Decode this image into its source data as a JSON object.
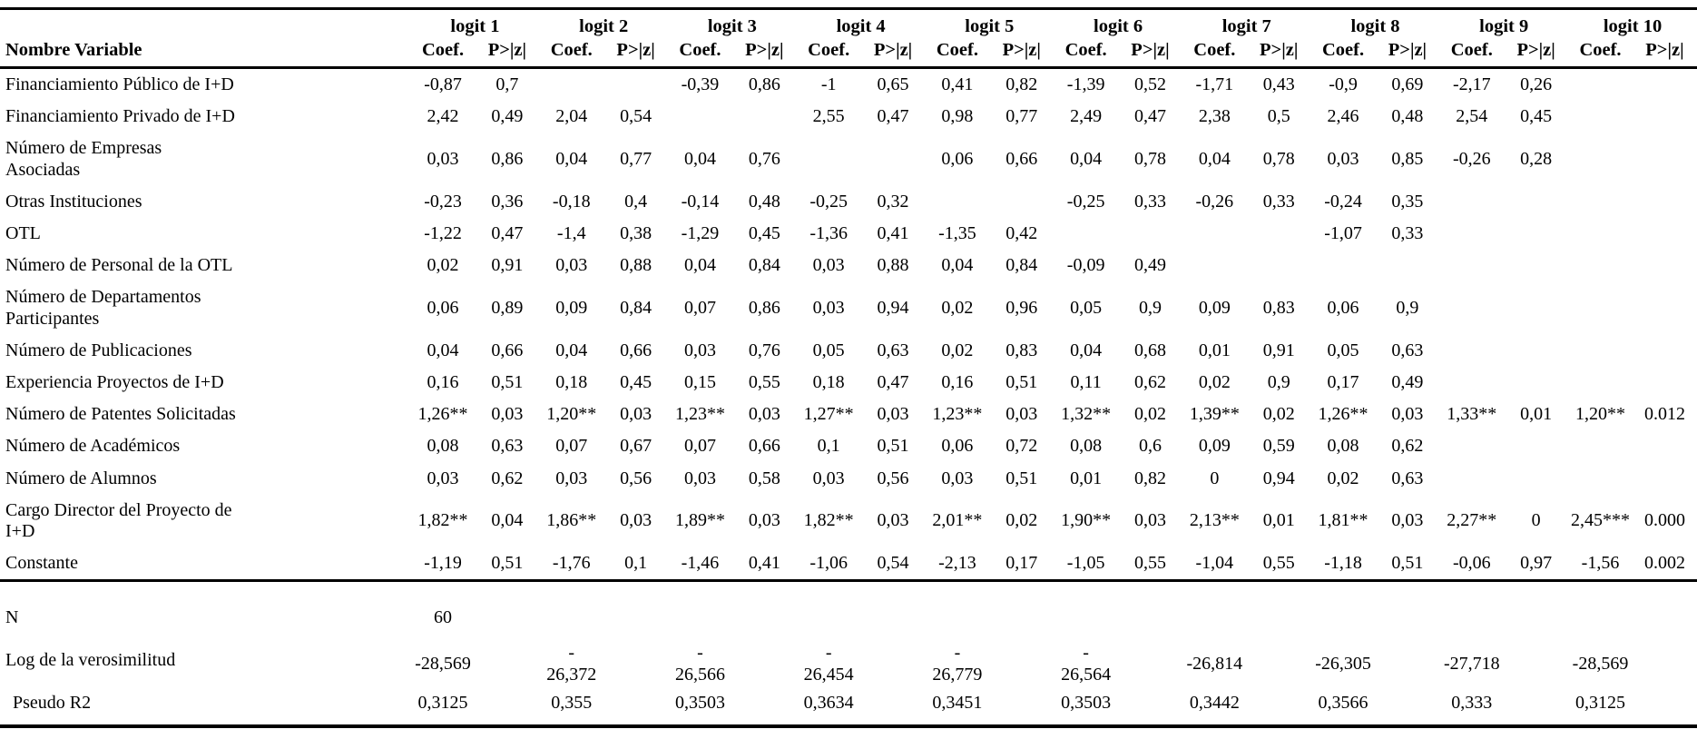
{
  "table": {
    "header": {
      "variable_col": "Nombre Variable",
      "coef_label": "Coef.",
      "p_label": "P>|z|"
    },
    "col_groups": [
      "logit 1",
      "logit 2",
      "logit 3",
      "logit 4",
      "logit 5",
      "logit 6",
      "logit 7",
      "logit 8",
      "logit 9",
      "logit 10"
    ],
    "rows": [
      {
        "label": "Financiamiento Público de I+D",
        "cells": [
          "-0,87",
          "0,7",
          "",
          "",
          "-0,39",
          "0,86",
          "-1",
          "0,65",
          "0,41",
          "0,82",
          "-1,39",
          "0,52",
          "-1,71",
          "0,43",
          "-0,9",
          "0,69",
          "-2,17",
          "0,26",
          "",
          ""
        ]
      },
      {
        "label": "Financiamiento Privado de I+D",
        "cells": [
          "2,42",
          "0,49",
          "2,04",
          "0,54",
          "",
          "",
          "2,55",
          "0,47",
          "0,98",
          "0,77",
          "2,49",
          "0,47",
          "2,38",
          "0,5",
          "2,46",
          "0,48",
          "2,54",
          "0,45",
          "",
          ""
        ]
      },
      {
        "label": "Número de Empresas\nAsociadas",
        "cells": [
          "0,03",
          "0,86",
          "0,04",
          "0,77",
          "0,04",
          "0,76",
          "",
          "",
          "0,06",
          "0,66",
          "0,04",
          "0,78",
          "0,04",
          "0,78",
          "0,03",
          "0,85",
          "-0,26",
          "0,28",
          "",
          ""
        ]
      },
      {
        "label": "Otras Instituciones",
        "cells": [
          "-0,23",
          "0,36",
          "-0,18",
          "0,4",
          "-0,14",
          "0,48",
          "-0,25",
          "0,32",
          "",
          "",
          "-0,25",
          "0,33",
          "-0,26",
          "0,33",
          "-0,24",
          "0,35",
          "",
          "",
          "",
          ""
        ]
      },
      {
        "label": "OTL",
        "cells": [
          "-1,22",
          "0,47",
          "-1,4",
          "0,38",
          "-1,29",
          "0,45",
          "-1,36",
          "0,41",
          "-1,35",
          "0,42",
          "",
          "",
          "",
          "",
          "-1,07",
          "0,33",
          "",
          "",
          "",
          ""
        ]
      },
      {
        "label": "Número de Personal de la OTL",
        "cells": [
          "0,02",
          "0,91",
          "0,03",
          "0,88",
          "0,04",
          "0,84",
          "0,03",
          "0,88",
          "0,04",
          "0,84",
          "-0,09",
          "0,49",
          "",
          "",
          "",
          "",
          "",
          "",
          "",
          ""
        ]
      },
      {
        "label": "Número de Departamentos\nParticipantes",
        "cells": [
          "0,06",
          "0,89",
          "0,09",
          "0,84",
          "0,07",
          "0,86",
          "0,03",
          "0,94",
          "0,02",
          "0,96",
          "0,05",
          "0,9",
          "0,09",
          "0,83",
          "0,06",
          "0,9",
          "",
          "",
          "",
          ""
        ]
      },
      {
        "label": "Número de Publicaciones",
        "cells": [
          "0,04",
          "0,66",
          "0,04",
          "0,66",
          "0,03",
          "0,76",
          "0,05",
          "0,63",
          "0,02",
          "0,83",
          "0,04",
          "0,68",
          "0,01",
          "0,91",
          "0,05",
          "0,63",
          "",
          "",
          "",
          ""
        ]
      },
      {
        "label": "Experiencia Proyectos de I+D",
        "cells": [
          "0,16",
          "0,51",
          "0,18",
          "0,45",
          "0,15",
          "0,55",
          "0,18",
          "0,47",
          "0,16",
          "0,51",
          "0,11",
          "0,62",
          "0,02",
          "0,9",
          "0,17",
          "0,49",
          "",
          "",
          "",
          ""
        ]
      },
      {
        "label": "Número de Patentes Solicitadas",
        "cells": [
          "1,26**",
          "0,03",
          "1,20**",
          "0,03",
          "1,23**",
          "0,03",
          "1,27**",
          "0,03",
          "1,23**",
          "0,03",
          "1,32**",
          "0,02",
          "1,39**",
          "0,02",
          "1,26**",
          "0,03",
          "1,33**",
          "0,01",
          "1,20**",
          "0.012"
        ]
      },
      {
        "label": "Número de Académicos",
        "cells": [
          "0,08",
          "0,63",
          "0,07",
          "0,67",
          "0,07",
          "0,66",
          "0,1",
          "0,51",
          "0,06",
          "0,72",
          "0,08",
          "0,6",
          "0,09",
          "0,59",
          "0,08",
          "0,62",
          "",
          "",
          "",
          ""
        ]
      },
      {
        "label": "Número de Alumnos",
        "cells": [
          "0,03",
          "0,62",
          "0,03",
          "0,56",
          "0,03",
          "0,58",
          "0,03",
          "0,56",
          "0,03",
          "0,51",
          "0,01",
          "0,82",
          "0",
          "0,94",
          "0,02",
          "0,63",
          "",
          "",
          "",
          ""
        ]
      },
      {
        "label": "Cargo Director del Proyecto de\nI+D",
        "cells": [
          "1,82**",
          "0,04",
          "1,86**",
          "0,03",
          "1,89**",
          "0,03",
          "1,82**",
          "0,03",
          "2,01**",
          "0,02",
          "1,90**",
          "0,03",
          "2,13**",
          "0,01",
          "1,81**",
          "0,03",
          "2,27**",
          "0",
          "2,45***",
          "0.000"
        ]
      },
      {
        "label": "Constante",
        "cells": [
          "-1,19",
          "0,51",
          "-1,76",
          "0,1",
          "-1,46",
          "0,41",
          "-1,06",
          "0,54",
          "-2,13",
          "0,17",
          "-1,05",
          "0,55",
          "-1,04",
          "0,55",
          "-1,18",
          "0,51",
          "-0,06",
          "0,97",
          "-1,56",
          "0.002"
        ]
      }
    ],
    "stats": [
      {
        "label": "N",
        "values": [
          "60",
          "",
          "",
          "",
          "",
          "",
          "",
          "",
          "",
          ""
        ]
      },
      {
        "label": "Log de la verosimilitud",
        "values": [
          "-28,569",
          "-\n26,372",
          "-\n26,566",
          "-\n26,454",
          "-\n26,779",
          "-\n26,564",
          "-26,814",
          "-26,305",
          "-27,718",
          "-28,569"
        ]
      },
      {
        "label": "Pseudo R2",
        "values": [
          "0,3125",
          "0,355",
          "0,3503",
          "0,3634",
          "0,3451",
          "0,3503",
          "0,3442",
          "0,3566",
          "0,333",
          "0,3125"
        ]
      }
    ]
  }
}
